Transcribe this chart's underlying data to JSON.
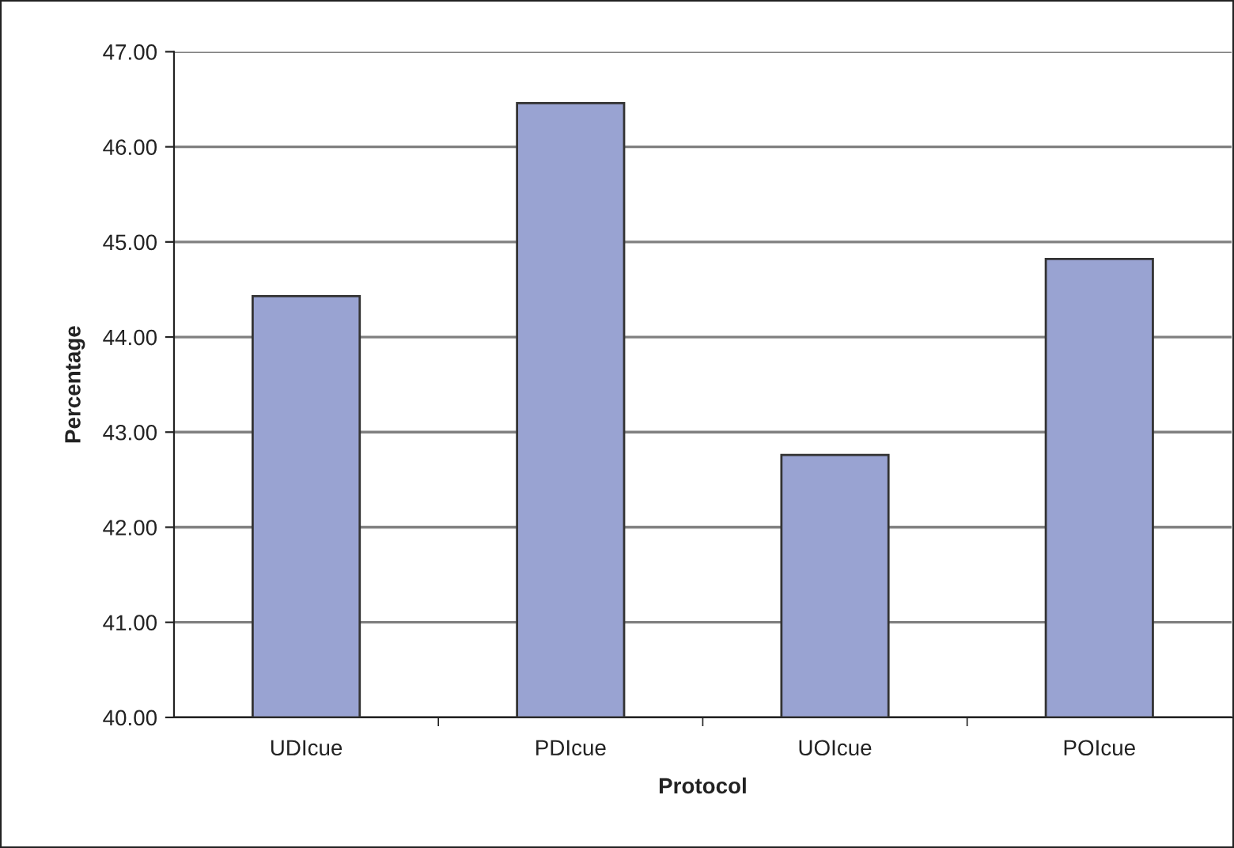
{
  "chart_data": {
    "type": "bar",
    "xlabel": "Protocol",
    "ylabel": "Percentage",
    "categories": [
      "UDIcue",
      "PDIcue",
      "UOIcue",
      "POIcue"
    ],
    "values": [
      44.43,
      46.46,
      42.76,
      44.82
    ],
    "color": "#99a3d2",
    "ylim": [
      40,
      47
    ],
    "yticks": [
      {
        "value": 40,
        "label": "40.00"
      },
      {
        "value": 41,
        "label": "41.00"
      },
      {
        "value": 42,
        "label": "42.00"
      },
      {
        "value": 43,
        "label": "43.00"
      },
      {
        "value": 44,
        "label": "44.00"
      },
      {
        "value": 45,
        "label": "45.00"
      },
      {
        "value": 46,
        "label": "46.00"
      },
      {
        "value": 47,
        "label": "47.00"
      }
    ],
    "grid": "y",
    "legend": false
  }
}
